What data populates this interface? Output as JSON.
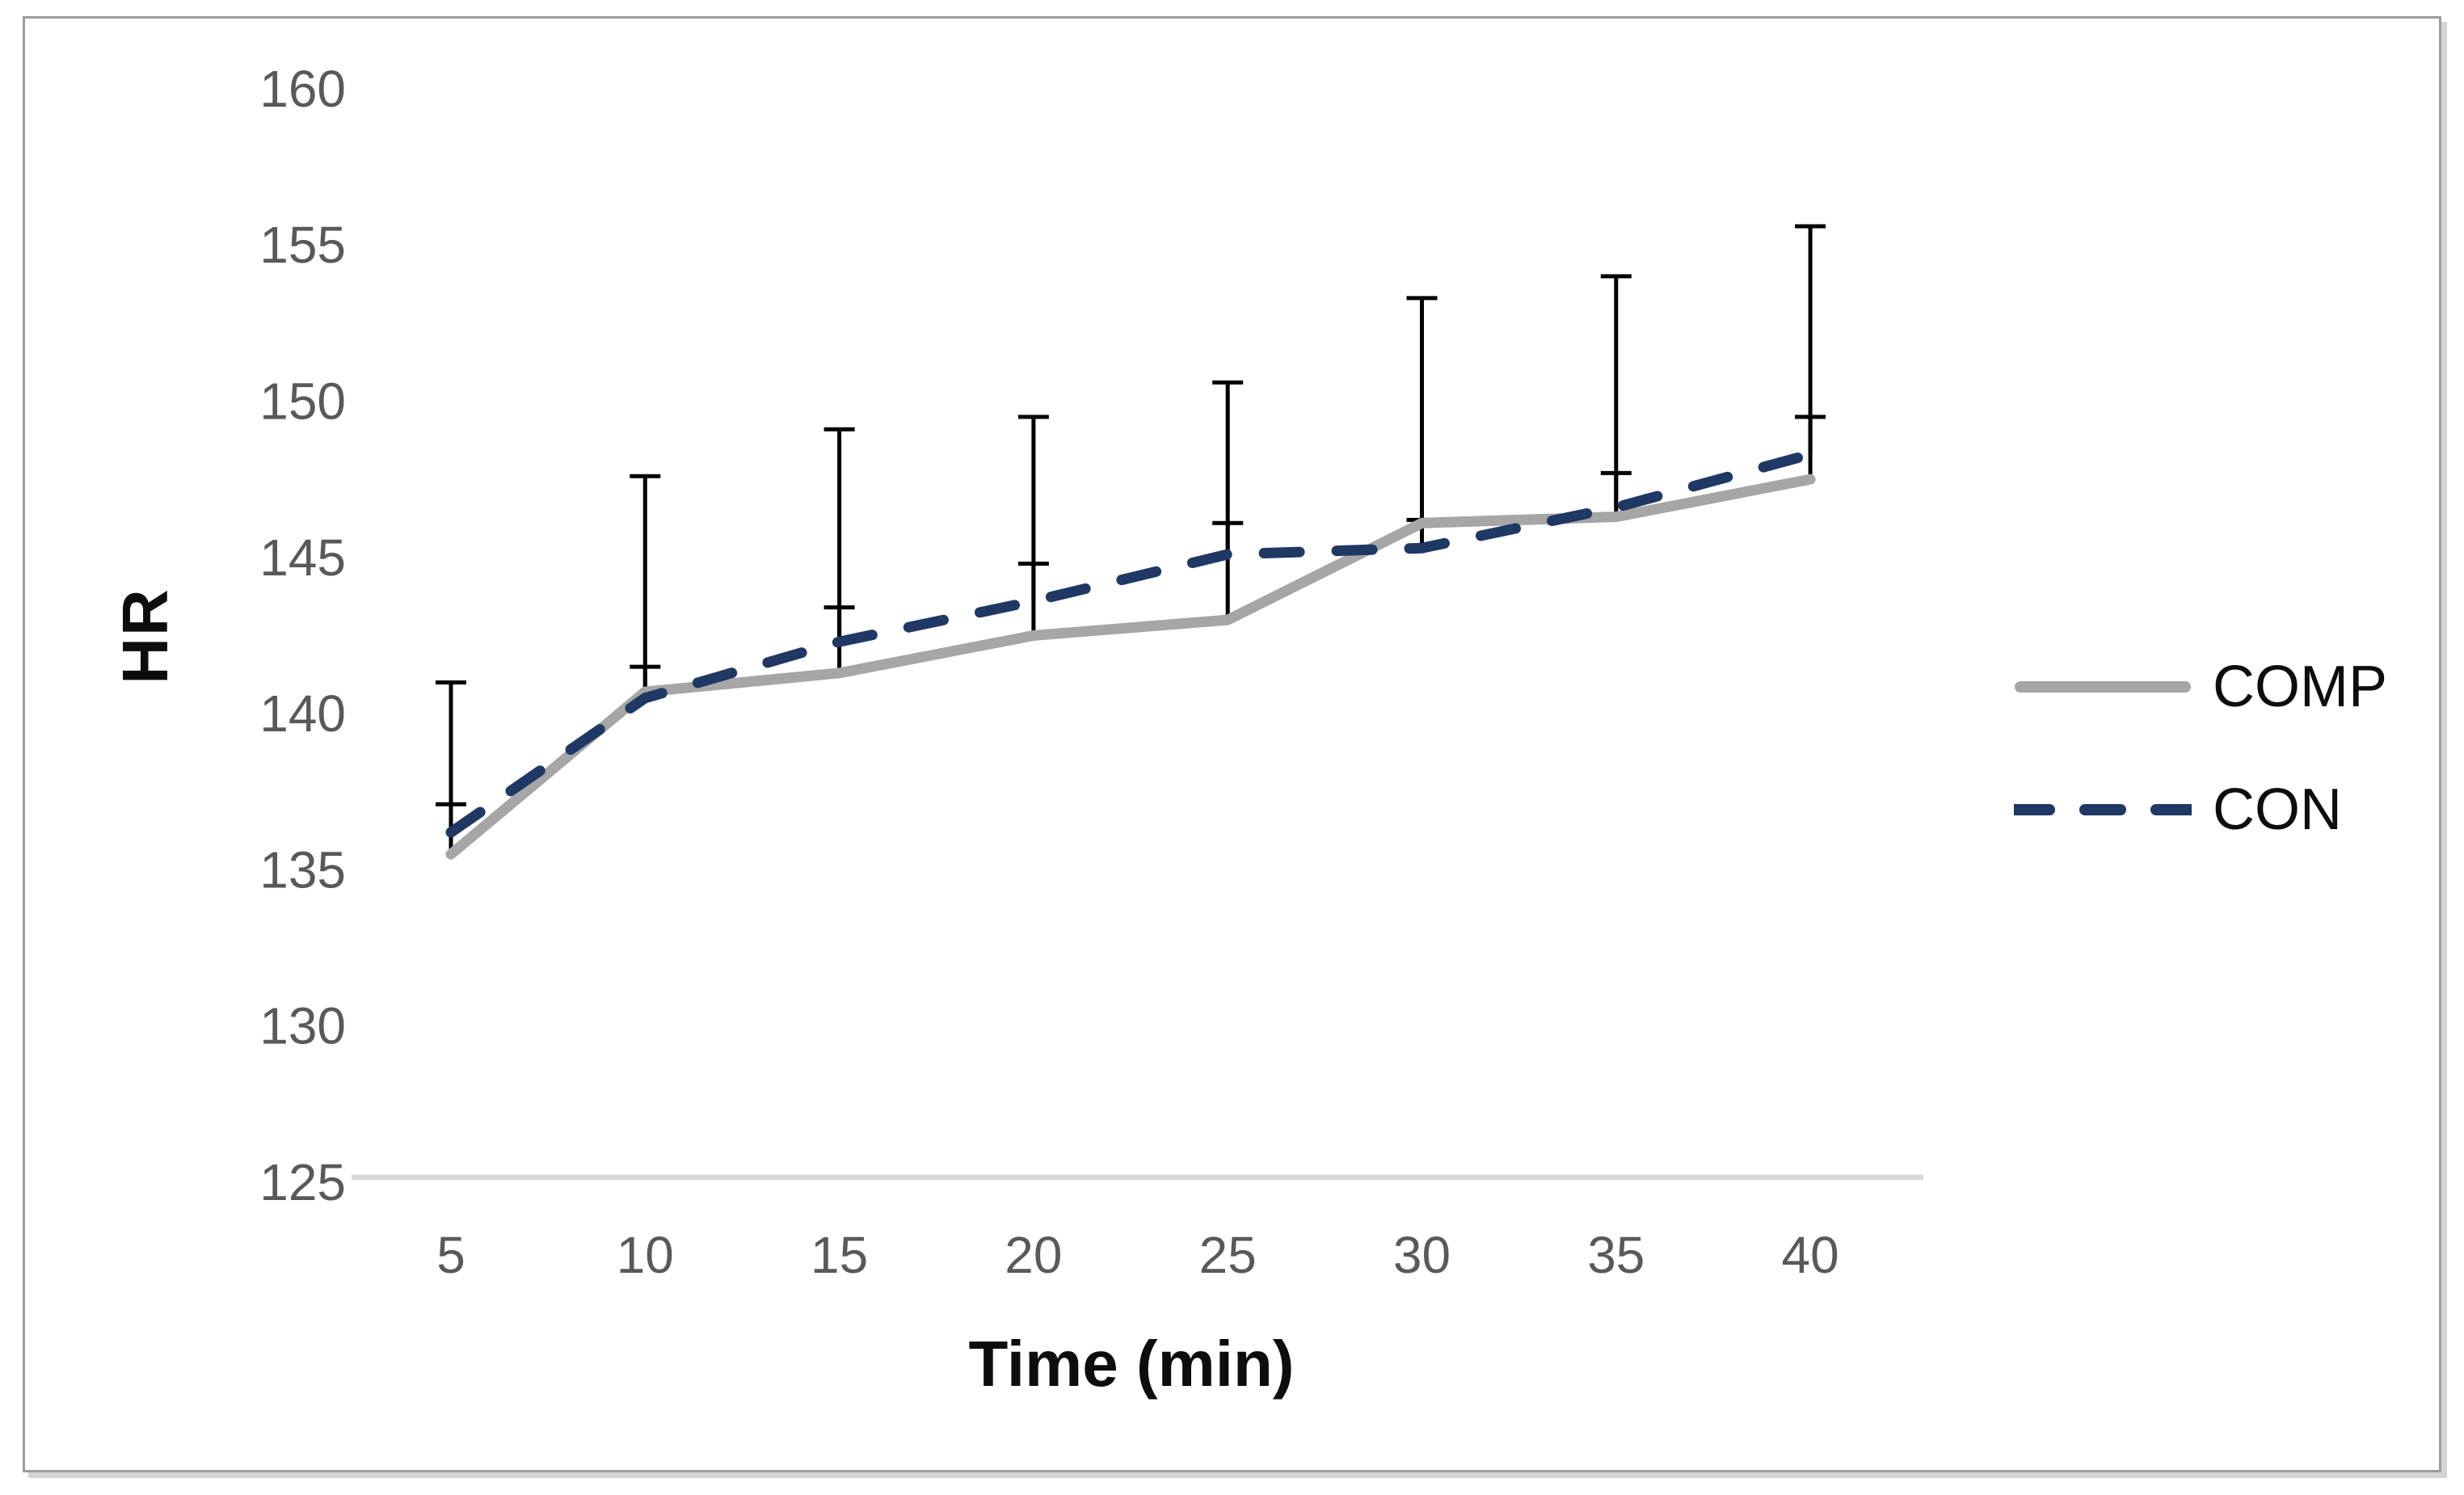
{
  "chart_data": {
    "type": "line",
    "title": "",
    "xlabel": "Time (min)",
    "ylabel": "HR",
    "categories": [
      5,
      10,
      15,
      20,
      25,
      30,
      35,
      40
    ],
    "yticks": [
      125,
      130,
      135,
      140,
      145,
      150,
      155,
      160
    ],
    "ylim": [
      125,
      160
    ],
    "grid": false,
    "legend_position": "right",
    "error_bars": "plus-direction-only, black, with end caps",
    "series": [
      {
        "name": "COMP",
        "line_style": "solid",
        "color": "#a6a6a6",
        "values": [
          135.5,
          140.7,
          141.3,
          142.5,
          143.0,
          146.1,
          146.3,
          147.5
        ],
        "error_top": [
          141.0,
          147.6,
          149.1,
          149.5,
          150.6,
          153.3,
          154.0,
          155.6
        ]
      },
      {
        "name": "CON",
        "line_style": "dashed",
        "color": "#1f3864",
        "values": [
          136.2,
          140.5,
          142.3,
          143.6,
          145.1,
          145.3,
          146.6,
          148.3
        ],
        "error_top": [
          137.1,
          141.5,
          143.4,
          144.8,
          146.1,
          146.2,
          147.7,
          149.5
        ]
      }
    ]
  },
  "styles": {
    "background": "#ffffff",
    "frame_border_color": "#9d9d9d",
    "axis_line_color": "#d9d9d9",
    "tick_label_color": "#595959",
    "axis_title_color": "#0d0d0d",
    "legend_text_color": "#0d0d0d",
    "error_bar_color": "#000000"
  }
}
